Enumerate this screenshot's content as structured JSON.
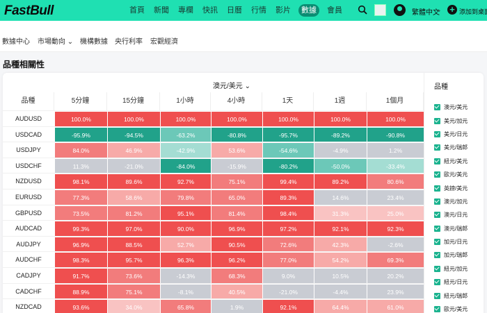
{
  "header": {
    "logo": "FastBull",
    "nav": [
      "首頁",
      "新聞",
      "專欄",
      "快訊",
      "日曆",
      "行情",
      "影片",
      "數據",
      "會員"
    ],
    "active_nav": 7,
    "language": "繁體中文",
    "add_label": "添加到桌面"
  },
  "subnav": [
    "數據中心",
    "市場動向",
    "機構數據",
    "央行利率",
    "宏觀經濟"
  ],
  "section_title": "品種相關性",
  "table": {
    "selected_pair": "澳元/美元",
    "corner_label": "品種",
    "columns": [
      "5分鐘",
      "15分鐘",
      "1小時",
      "4小時",
      "1天",
      "1週",
      "1個月"
    ],
    "rows": [
      {
        "symbol": "AUDUSD",
        "values": [
          100.0,
          100.0,
          100.0,
          100.0,
          100.0,
          100.0,
          100.0
        ]
      },
      {
        "symbol": "USDCAD",
        "values": [
          -95.9,
          -94.5,
          -63.2,
          -80.8,
          -95.7,
          -89.2,
          -90.8
        ]
      },
      {
        "symbol": "USDJPY",
        "values": [
          84.0,
          46.9,
          -42.9,
          53.6,
          -54.6,
          -4.9,
          1.2
        ]
      },
      {
        "symbol": "USDCHF",
        "values": [
          11.3,
          -21.0,
          -84.0,
          -15.9,
          -80.2,
          -50.0,
          -33.4
        ]
      },
      {
        "symbol": "NZDUSD",
        "values": [
          98.1,
          89.6,
          92.7,
          75.1,
          99.4,
          89.2,
          80.6
        ]
      },
      {
        "symbol": "EURUSD",
        "values": [
          77.3,
          58.6,
          79.8,
          65.0,
          89.3,
          14.6,
          23.4
        ]
      },
      {
        "symbol": "GBPUSD",
        "values": [
          73.5,
          81.2,
          95.1,
          81.4,
          98.4,
          31.3,
          25.0
        ]
      },
      {
        "symbol": "AUDCAD",
        "values": [
          99.3,
          97.0,
          90.0,
          96.9,
          97.2,
          92.1,
          92.3
        ]
      },
      {
        "symbol": "AUDJPY",
        "values": [
          96.9,
          88.5,
          52.7,
          90.5,
          72.6,
          42.3,
          -2.6
        ]
      },
      {
        "symbol": "AUDCHF",
        "values": [
          98.3,
          95.7,
          96.3,
          96.2,
          77.0,
          54.2,
          69.3
        ]
      },
      {
        "symbol": "CADJPY",
        "values": [
          91.7,
          73.6,
          -14.3,
          68.3,
          9.0,
          10.5,
          20.2
        ]
      },
      {
        "symbol": "CADCHF",
        "values": [
          88.9,
          75.1,
          -8.1,
          40.5,
          -21.0,
          -4.4,
          23.9
        ]
      },
      {
        "symbol": "NZDCAD",
        "values": [
          93.6,
          34.0,
          65.8,
          1.9,
          92.1,
          64.4,
          61.0
        ]
      }
    ]
  },
  "side": {
    "title": "品種",
    "items": [
      "澳元/美元",
      "美元/加元",
      "美元/日元",
      "美元/瑞郎",
      "紐元/美元",
      "歐元/美元",
      "英鎊/美元",
      "澳元/加元",
      "澳元/日元",
      "澳元/瑞郎",
      "加元/日元",
      "加元/瑞郎",
      "紐元/加元",
      "紐元/日元",
      "紐元/瑞郎",
      "歐元/美元"
    ]
  },
  "colors": {
    "accent": "#1fe0b2",
    "strong_pos": "#ef4f4f",
    "strong_neg": "#21a28a",
    "neutral": "#c9ccd3"
  }
}
